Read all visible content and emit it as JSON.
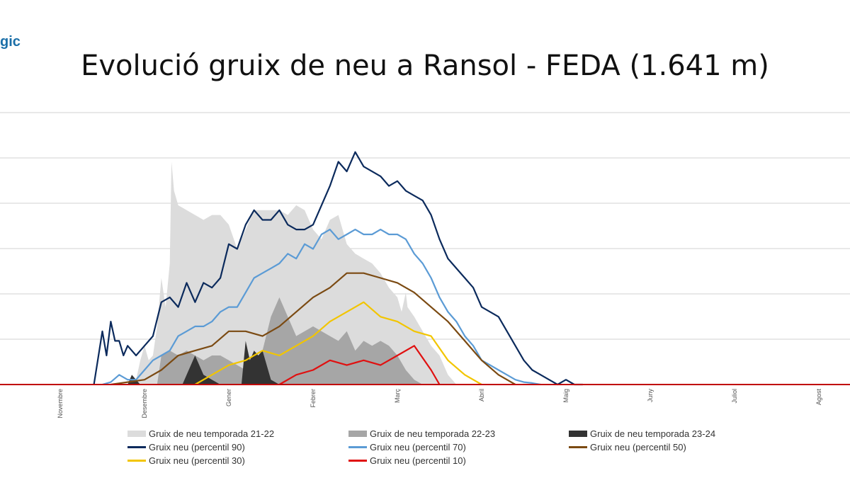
{
  "header": {
    "logo_text": "gic"
  },
  "chart_data": {
    "type": "area",
    "title": "Evolució gruix de neu a Ransol - FEDA (1.641 m)",
    "xlabel": "",
    "ylabel": "",
    "categories": [
      "Novembre",
      "Desembre",
      "Gener",
      "Febrer",
      "Març",
      "Abril",
      "Maig",
      "Juny",
      "Juliol",
      "Agost"
    ],
    "ylim": [
      0,
      5.6
    ],
    "grid": true,
    "legend_position": "bottom",
    "colors": {
      "s21": "#dcdcdc",
      "s22": "#a6a6a6",
      "s23": "#333333",
      "p90": "#0b2a5c",
      "p70": "#5b9bd5",
      "p50": "#7b4a12",
      "p30": "#f2c500",
      "p10": "#e01010",
      "baseline": "#c00000",
      "grid": "#d0d0d0"
    },
    "series": [
      {
        "name": "Gruix de neu temporada 21-22",
        "kind": "area",
        "color_key": "s21",
        "x": [
          0.85,
          0.9,
          0.95,
          1.0,
          1.05,
          1.1,
          1.15,
          1.2,
          1.25,
          1.3,
          1.32,
          1.35,
          1.4,
          1.5,
          1.6,
          1.7,
          1.8,
          1.9,
          2.0,
          2.1,
          2.2,
          2.3,
          2.4,
          2.5,
          2.6,
          2.7,
          2.8,
          2.9,
          3.0,
          3.1,
          3.2,
          3.3,
          3.4,
          3.5,
          3.6,
          3.7,
          3.8,
          3.9,
          4.0,
          4.05,
          4.1,
          4.12,
          4.2,
          4.3,
          4.4,
          4.5,
          4.55,
          4.6,
          4.7
        ],
        "y": [
          0,
          0.1,
          0.5,
          0.8,
          0.5,
          0.6,
          1.2,
          2.2,
          1.6,
          2.5,
          4.6,
          4.0,
          3.7,
          3.6,
          3.5,
          3.4,
          3.5,
          3.5,
          3.3,
          2.8,
          3.2,
          3.6,
          3.6,
          3.6,
          3.6,
          3.5,
          3.7,
          3.6,
          3.2,
          3.0,
          3.4,
          3.5,
          2.9,
          2.7,
          2.6,
          2.5,
          2.3,
          2.0,
          1.8,
          1.5,
          1.9,
          1.6,
          1.4,
          1.1,
          0.8,
          0.6,
          0.4,
          0.2,
          0
        ]
      },
      {
        "name": "Gruix de neu temporada 22-23",
        "kind": "area",
        "color_key": "s22",
        "x": [
          1.15,
          1.2,
          1.3,
          1.4,
          1.5,
          1.6,
          1.7,
          1.8,
          1.9,
          2.0,
          2.2,
          2.4,
          2.5,
          2.6,
          2.7,
          2.8,
          2.9,
          3.0,
          3.1,
          3.2,
          3.3,
          3.4,
          3.5,
          3.6,
          3.7,
          3.8,
          3.9,
          4.0,
          4.1,
          4.2,
          4.3
        ],
        "y": [
          0,
          0.6,
          0.7,
          0.6,
          0.7,
          0.6,
          0.5,
          0.6,
          0.6,
          0.5,
          0.3,
          0.7,
          1.4,
          1.8,
          1.4,
          1.0,
          1.1,
          1.2,
          1.1,
          1.0,
          0.9,
          1.1,
          0.7,
          0.9,
          0.8,
          0.9,
          0.8,
          0.6,
          0.3,
          0.1,
          0
        ]
      },
      {
        "name": "Gruix de neu temporada 23-24",
        "kind": "area",
        "color_key": "s23",
        "x": [
          0.75,
          0.8,
          0.85,
          0.9,
          0.95,
          1.0,
          1.05,
          1.1,
          1.15,
          1.2,
          1.25,
          1.3,
          1.35,
          1.4,
          1.45,
          1.5,
          1.6,
          1.7,
          1.8,
          1.9,
          2.0,
          2.1,
          2.15,
          2.2,
          2.25,
          2.3,
          2.35,
          2.4,
          2.5,
          2.6
        ],
        "y": [
          0,
          0,
          0.2,
          0.1,
          0,
          0,
          0,
          0,
          0,
          0,
          0,
          0,
          0,
          0,
          0,
          0.2,
          0.6,
          0.2,
          0.1,
          0,
          0,
          0,
          0,
          0.9,
          0.5,
          0.7,
          0.6,
          0.7,
          0.1,
          0
        ]
      },
      {
        "name": "Gruix neu (percentil 90)",
        "kind": "line",
        "color_key": "p90",
        "x": [
          0.4,
          0.5,
          0.55,
          0.6,
          0.65,
          0.7,
          0.75,
          0.8,
          0.9,
          1.0,
          1.1,
          1.2,
          1.3,
          1.4,
          1.5,
          1.6,
          1.7,
          1.8,
          1.9,
          2.0,
          2.1,
          2.2,
          2.3,
          2.4,
          2.5,
          2.6,
          2.7,
          2.8,
          2.9,
          3.0,
          3.1,
          3.2,
          3.3,
          3.4,
          3.5,
          3.6,
          3.7,
          3.8,
          3.9,
          4.0,
          4.1,
          4.2,
          4.3,
          4.4,
          4.5,
          4.6,
          4.7,
          4.8,
          4.9,
          5.0,
          5.1,
          5.2,
          5.3,
          5.4,
          5.5,
          5.6,
          5.7,
          5.8,
          5.9,
          6.0,
          6.1,
          6.2
        ],
        "y": [
          0,
          1.1,
          0.6,
          1.3,
          0.9,
          0.9,
          0.6,
          0.8,
          0.6,
          0.8,
          1.0,
          1.7,
          1.8,
          1.6,
          2.1,
          1.7,
          2.1,
          2.0,
          2.2,
          2.9,
          2.8,
          3.3,
          3.6,
          3.4,
          3.4,
          3.6,
          3.3,
          3.2,
          3.2,
          3.3,
          3.7,
          4.1,
          4.6,
          4.4,
          4.8,
          4.5,
          4.4,
          4.3,
          4.1,
          4.2,
          4.0,
          3.9,
          3.8,
          3.5,
          3.0,
          2.6,
          2.4,
          2.2,
          2.0,
          1.6,
          1.5,
          1.4,
          1.1,
          0.8,
          0.5,
          0.3,
          0.2,
          0.1,
          0.0,
          0.1,
          0,
          0
        ]
      },
      {
        "name": "Gruix neu (percentil 70)",
        "kind": "line",
        "color_key": "p70",
        "x": [
          0.5,
          0.6,
          0.7,
          0.8,
          0.9,
          1.0,
          1.1,
          1.2,
          1.3,
          1.4,
          1.5,
          1.6,
          1.7,
          1.8,
          1.9,
          2.0,
          2.1,
          2.2,
          2.3,
          2.4,
          2.5,
          2.6,
          2.7,
          2.8,
          2.9,
          3.0,
          3.1,
          3.2,
          3.3,
          3.4,
          3.5,
          3.6,
          3.7,
          3.8,
          3.9,
          4.0,
          4.1,
          4.2,
          4.3,
          4.4,
          4.5,
          4.6,
          4.7,
          4.8,
          4.9,
          5.0,
          5.1,
          5.2,
          5.3,
          5.4,
          5.5,
          5.6,
          5.7
        ],
        "y": [
          0,
          0.05,
          0.2,
          0.1,
          0.1,
          0.3,
          0.5,
          0.6,
          0.7,
          1.0,
          1.1,
          1.2,
          1.2,
          1.3,
          1.5,
          1.6,
          1.6,
          1.9,
          2.2,
          2.3,
          2.4,
          2.5,
          2.7,
          2.6,
          2.9,
          2.8,
          3.1,
          3.2,
          3.0,
          3.1,
          3.2,
          3.1,
          3.1,
          3.2,
          3.1,
          3.1,
          3.0,
          2.7,
          2.5,
          2.2,
          1.8,
          1.5,
          1.3,
          1.0,
          0.8,
          0.5,
          0.4,
          0.3,
          0.2,
          0.1,
          0.05,
          0.03,
          0
        ]
      },
      {
        "name": "Gruix neu (percentil 50)",
        "kind": "line",
        "color_key": "p50",
        "x": [
          0.6,
          0.8,
          1.0,
          1.2,
          1.4,
          1.6,
          1.8,
          2.0,
          2.2,
          2.4,
          2.6,
          2.8,
          3.0,
          3.2,
          3.4,
          3.6,
          3.8,
          4.0,
          4.2,
          4.4,
          4.6,
          4.8,
          5.0,
          5.2,
          5.4
        ],
        "y": [
          0,
          0.05,
          0.1,
          0.3,
          0.6,
          0.7,
          0.8,
          1.1,
          1.1,
          1.0,
          1.2,
          1.5,
          1.8,
          2.0,
          2.3,
          2.3,
          2.2,
          2.1,
          1.9,
          1.6,
          1.3,
          0.9,
          0.5,
          0.2,
          0
        ]
      },
      {
        "name": "Gruix neu (percentil 30)",
        "kind": "line",
        "color_key": "p30",
        "x": [
          1.6,
          1.8,
          2.0,
          2.2,
          2.4,
          2.6,
          2.8,
          3.0,
          3.2,
          3.4,
          3.6,
          3.8,
          4.0,
          4.2,
          4.4,
          4.6,
          4.8,
          5.0
        ],
        "y": [
          0,
          0.2,
          0.4,
          0.5,
          0.7,
          0.6,
          0.8,
          1.0,
          1.3,
          1.5,
          1.7,
          1.4,
          1.3,
          1.1,
          1.0,
          0.5,
          0.2,
          0
        ]
      },
      {
        "name": "Gruix neu (percentil 10)",
        "kind": "line",
        "color_key": "p10",
        "x": [
          2.6,
          2.8,
          3.0,
          3.2,
          3.4,
          3.6,
          3.8,
          4.0,
          4.2,
          4.4,
          4.5
        ],
        "y": [
          0,
          0.2,
          0.3,
          0.5,
          0.4,
          0.5,
          0.4,
          0.6,
          0.8,
          0.3,
          0
        ]
      }
    ]
  }
}
